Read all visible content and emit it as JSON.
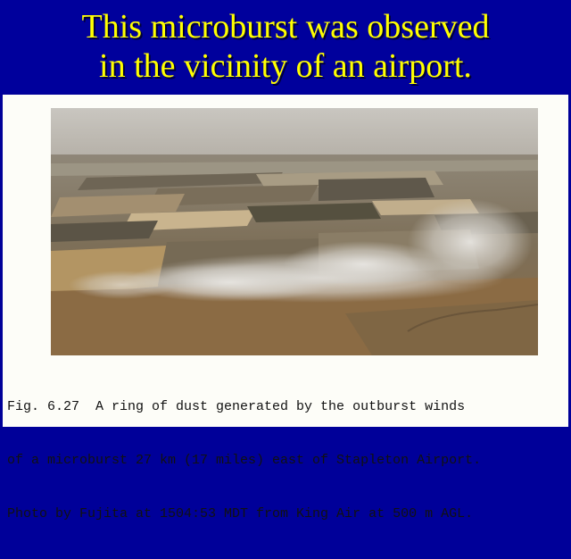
{
  "slide": {
    "title_lines": [
      "This microburst was observed",
      "in the vicinity of an airport."
    ],
    "colors": {
      "background": "#000099",
      "title": "#ffff00",
      "paper": "#fdfdf8"
    }
  },
  "figure": {
    "photo_icon": "aerial-photo-microburst-dust-ring",
    "caption_lines": [
      "Fig. 6.27  A ring of dust generated by the outburst winds",
      "of a microburst 27 km (17 miles) east of Stapleton Airport.",
      "Photo by Fujita at 1504:53 MDT from King Air at 500 m AGL."
    ]
  }
}
